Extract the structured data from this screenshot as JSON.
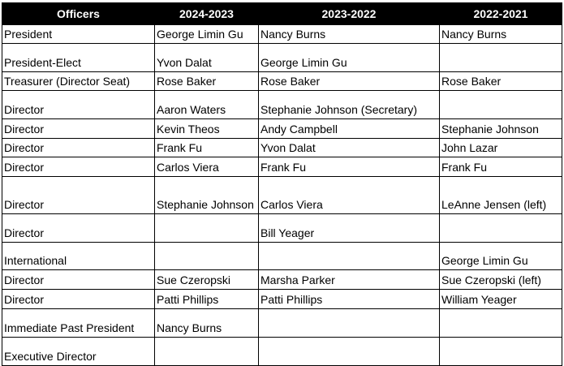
{
  "headers": [
    "Officers",
    "2024-2023",
    "2023-2022",
    "2022-2021"
  ],
  "rows": [
    [
      "President",
      "George Limin Gu",
      "Nancy Burns",
      "Nancy Burns"
    ],
    [
      "President-Elect",
      "Yvon Dalat",
      "George Limin Gu",
      ""
    ],
    [
      "Treasurer (Director Seat)",
      "Rose Baker",
      "Rose Baker",
      "Rose Baker"
    ],
    [
      "Director",
      "Aaron Waters",
      "Stephanie Johnson (Secretary)",
      ""
    ],
    [
      "Director",
      "Kevin Theos",
      "Andy Campbell",
      "Stephanie Johnson"
    ],
    [
      "Director",
      "Frank Fu",
      "Yvon Dalat",
      "John Lazar"
    ],
    [
      "Director",
      "Carlos Viera",
      "Frank Fu",
      "Frank Fu"
    ],
    [
      "Director",
      "Stephanie Johnson",
      "Carlos Viera",
      "LeAnne Jensen (left)"
    ],
    [
      "Director",
      "",
      "Bill Yeager",
      ""
    ],
    [
      "International",
      "",
      "",
      "George Limin Gu"
    ],
    [
      "Director",
      "Sue Czeropski",
      "Marsha Parker",
      "Sue Czeropski (left)"
    ],
    [
      "Director",
      "Patti Phillips",
      "Patti Phillips",
      "William Yeager"
    ],
    [
      "Immediate Past President",
      "Nancy Burns",
      "",
      ""
    ],
    [
      "Executive Director",
      "",
      "",
      ""
    ]
  ]
}
